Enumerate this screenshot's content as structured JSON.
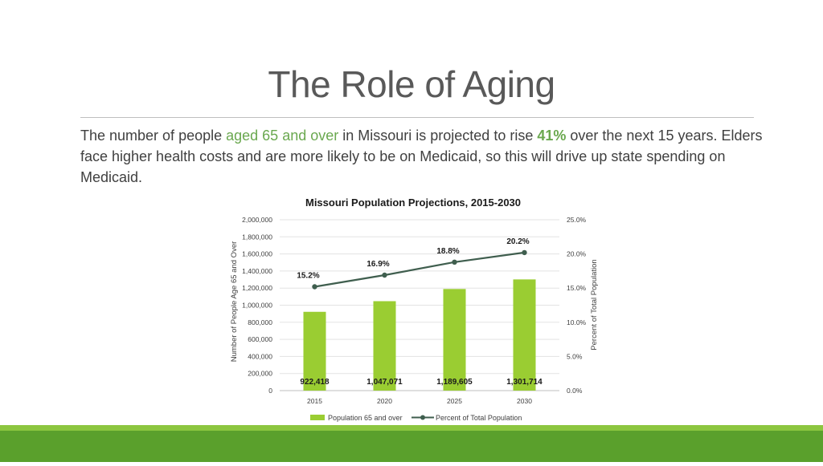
{
  "slide": {
    "title": "The Role of Aging",
    "body_part1": "The number of people ",
    "body_highlight": "aged 65 and over",
    "body_part2": " in Missouri is projected to rise ",
    "body_bold": "41%",
    "body_part3": " over the next 15 years.  Elders face higher health costs and are more likely to be on Medicaid, so this will drive up state spending on Medicaid."
  },
  "colors": {
    "bar": "#9acd32",
    "line": "#3f5e4e",
    "footer_light": "#8cc63f",
    "footer_dark": "#5aa02c"
  },
  "chart_data": {
    "type": "bar",
    "title": "Missouri Population Projections, 2015-2030",
    "categories": [
      "2015",
      "2020",
      "2025",
      "2030"
    ],
    "series": [
      {
        "name": "Population 65 and over",
        "type": "bar",
        "axis": "left",
        "values": [
          922418,
          1047071,
          1189605,
          1301714
        ],
        "labels": [
          "922,418",
          "1,047,071",
          "1,189,605",
          "1,301,714"
        ]
      },
      {
        "name": "Percent of Total Population",
        "type": "line",
        "axis": "right",
        "values": [
          15.2,
          16.9,
          18.8,
          20.2
        ],
        "labels": [
          "15.2%",
          "16.9%",
          "18.8%",
          "20.2%"
        ]
      }
    ],
    "ylabel": "Number of People Age 65 and Over",
    "y2label": "Percent of Total Population",
    "ylim": [
      0,
      2000000
    ],
    "y2lim": [
      0,
      25
    ],
    "yticks": [
      "0",
      "200,000",
      "400,000",
      "600,000",
      "800,000",
      "1,000,000",
      "1,200,000",
      "1,400,000",
      "1,600,000",
      "1,800,000",
      "2,000,000"
    ],
    "y2ticks": [
      "0.0%",
      "5.0%",
      "10.0%",
      "15.0%",
      "20.0%",
      "25.0%"
    ],
    "grid": true,
    "legend": "bottom"
  }
}
